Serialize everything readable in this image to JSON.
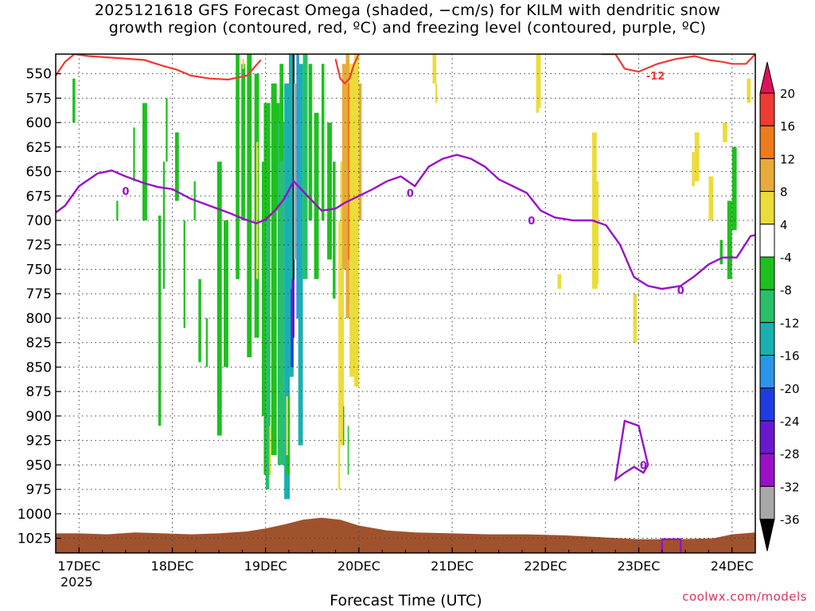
{
  "title": {
    "line1": "2025121618 GFS Forecast Omega (shaded, −cm/s) for KILM with dendritic snow",
    "line2": "growth region (contoured, red, ºC) and freezing level (contoured, purple, ºC)"
  },
  "watermark": "coolwx.com/models",
  "chart_data": {
    "type": "heatmap",
    "xlabel": "Forecast Time (UTC)",
    "x_year_label": "2025",
    "x_ticks": [
      "17DEC",
      "18DEC",
      "19DEC",
      "20DEC",
      "21DEC",
      "22DEC",
      "23DEC",
      "24DEC"
    ],
    "x_range_days": [
      16.75,
      24.25
    ],
    "y_ticks": [
      550,
      575,
      600,
      625,
      650,
      675,
      700,
      725,
      750,
      775,
      800,
      825,
      850,
      875,
      900,
      925,
      950,
      975,
      1000,
      1025
    ],
    "y_range_hpa": [
      530,
      1040
    ],
    "grid": true,
    "colorbar": {
      "labels": [
        "20",
        "16",
        "12",
        "8",
        "4",
        "-4",
        "-8",
        "-12",
        "-16",
        "-20",
        "-24",
        "-28",
        "-32",
        "-36"
      ],
      "colors": [
        "#e0105a",
        "#ee3b33",
        "#ee7b1c",
        "#e8ab3a",
        "#ecdc3a",
        "#ffffff",
        "#1ec01e",
        "#2abf6a",
        "#1ab0b0",
        "#2a96e8",
        "#1f3ce0",
        "#6a18d0",
        "#9a10c8",
        "#a8a8a8",
        "#000000"
      ]
    },
    "contour_labels": {
      "freezing_level": "0",
      "dendritic": "-12"
    },
    "freezing_level": {
      "color": "#9810c8",
      "x": [
        16.75,
        16.85,
        17.0,
        17.2,
        17.35,
        17.5,
        17.7,
        17.85,
        18.0,
        18.2,
        18.4,
        18.6,
        18.75,
        18.9,
        19.0,
        19.1,
        19.2,
        19.3,
        19.45,
        19.6,
        19.75,
        19.85,
        20.0,
        20.15,
        20.3,
        20.45,
        20.6,
        20.75,
        20.9,
        21.05,
        21.2,
        21.35,
        21.5,
        21.65,
        21.8,
        21.95,
        22.1,
        22.3,
        22.5,
        22.65,
        22.8,
        22.95,
        23.1,
        23.25,
        23.45,
        23.6,
        23.75,
        23.9,
        24.05,
        24.2,
        24.25
      ],
      "hpa": [
        692,
        685,
        665,
        652,
        649,
        655,
        662,
        666,
        668,
        678,
        685,
        692,
        698,
        703,
        699,
        690,
        678,
        660,
        675,
        690,
        688,
        682,
        675,
        668,
        660,
        655,
        665,
        645,
        637,
        633,
        637,
        645,
        658,
        665,
        672,
        690,
        697,
        700,
        700,
        705,
        725,
        758,
        767,
        770,
        767,
        757,
        745,
        738,
        738,
        716,
        715
      ]
    },
    "freezing_level_closed": {
      "x": [
        22.75,
        22.85,
        23.0,
        23.1,
        23.05,
        22.95,
        22.85,
        22.75
      ],
      "hpa": [
        965,
        905,
        910,
        950,
        958,
        952,
        958,
        965
      ]
    },
    "dendritic_minus12": {
      "color": "#ee3b33",
      "x": [
        16.75,
        16.85,
        16.95,
        17.1,
        17.4,
        17.7,
        17.9,
        18.05,
        18.2,
        18.4,
        18.6,
        18.8,
        18.95
      ],
      "hpa": [
        552,
        538,
        530,
        532,
        534,
        536,
        542,
        546,
        552,
        555,
        556,
        552,
        536
      ]
    }
  }
}
